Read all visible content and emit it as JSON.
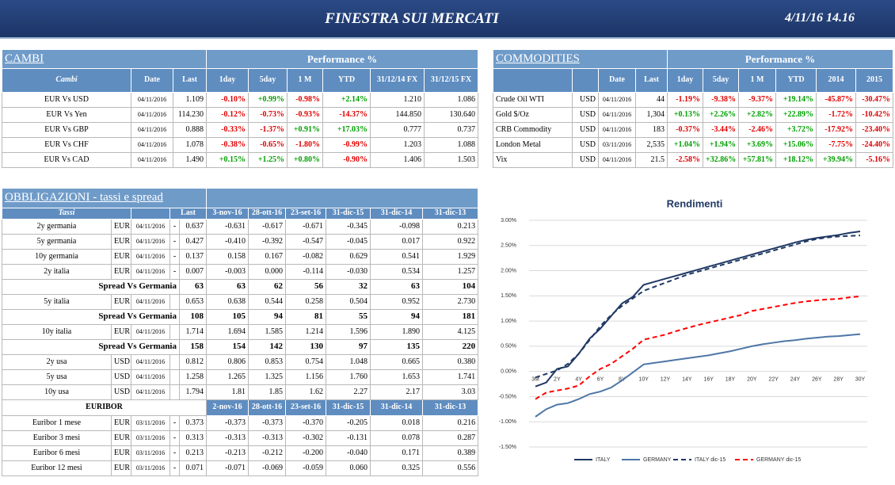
{
  "header": {
    "title": "FINESTRA SUI MERCATI",
    "date": "4/11/16 14.16"
  },
  "cambi": {
    "title": "CAMBI",
    "performance": "Performance  %",
    "columns": [
      "Cambi",
      "Date",
      "Last",
      "1day",
      "5day",
      "1 M",
      "YTD",
      "31/12/14 FX",
      "31/12/15  FX"
    ],
    "rows": [
      [
        "EUR Vs USD",
        "04/11/2016",
        "1.109",
        "-0.10%",
        "+0.99%",
        "-0.98%",
        "+2.14%",
        "1.210",
        "1.086"
      ],
      [
        "EUR Vs Yen",
        "04/11/2016",
        "114.230",
        "-0.12%",
        "-0.73%",
        "-0.93%",
        "-14.37%",
        "144.850",
        "130.640"
      ],
      [
        "EUR Vs GBP",
        "04/11/2016",
        "0.888",
        "-0.33%",
        "-1.37%",
        "+0.91%",
        "+17.03%",
        "0.777",
        "0.737"
      ],
      [
        "EUR Vs CHF",
        "04/11/2016",
        "1.078",
        "-0.38%",
        "-0.65%",
        "-1.80%",
        "-0.99%",
        "1.203",
        "1.088"
      ],
      [
        "EUR Vs CAD",
        "04/11/2016",
        "1.490",
        "+0.15%",
        "+1.25%",
        "+0.80%",
        "-0.90%",
        "1.406",
        "1.503"
      ]
    ]
  },
  "commodities": {
    "title": "COMMODITIES",
    "performance": "Performance  %",
    "columns": [
      "Date",
      "Last",
      "1day",
      "5day",
      "1 M",
      "YTD",
      "2014",
      "2015"
    ],
    "rows": [
      [
        "Crude Oil WTI",
        "USD",
        "04/11/2016",
        "44",
        "-1.19%",
        "-9.38%",
        "-9.37%",
        "+19.14%",
        "-45.87%",
        "-30.47%"
      ],
      [
        "Gold $/Oz",
        "USD",
        "04/11/2016",
        "1,304",
        "+0.13%",
        "+2.26%",
        "+2.82%",
        "+22.89%",
        "-1.72%",
        "-10.42%"
      ],
      [
        "CRB Commodity",
        "USD",
        "04/11/2016",
        "183",
        "-0.37%",
        "-3.44%",
        "-2.46%",
        "+3.72%",
        "-17.92%",
        "-23.40%"
      ],
      [
        "London Metal",
        "USD",
        "03/11/2016",
        "2,535",
        "+1.04%",
        "+1.94%",
        "+3.69%",
        "+15.06%",
        "-7.75%",
        "-24.40%"
      ],
      [
        "Vix",
        "USD",
        "04/11/2016",
        "21.5",
        "-2.58%",
        "+32.86%",
        "+57.81%",
        "+18.12%",
        "+39.94%",
        "-5.16%"
      ]
    ]
  },
  "obbligazioni": {
    "title": "OBBLIGAZIONI - tassi e spread",
    "columns": [
      "Tassi",
      "Last"
    ],
    "dates": [
      "3-nov-16",
      "28-ott-16",
      "23-set-16",
      "31-dic-15",
      "31-dic-14",
      "31-dic-13"
    ],
    "rows": [
      {
        "name": "2y germania",
        "currency": "EUR",
        "date": "04/11/2016",
        "sign": "-",
        "last": "0.637",
        "history": [
          "-0.631",
          "-0.617",
          "-0.671",
          "-0.345",
          "-0.098",
          "0.213"
        ]
      },
      {
        "name": "5y germania",
        "currency": "EUR",
        "date": "04/11/2016",
        "sign": "-",
        "last": "0.427",
        "history": [
          "-0.410",
          "-0.392",
          "-0.547",
          "-0.045",
          "0.017",
          "0.922"
        ]
      },
      {
        "name": "10y germania",
        "currency": "EUR",
        "date": "04/11/2016",
        "sign": "-",
        "last": "0.137",
        "history": [
          "0.158",
          "0.167",
          "-0.082",
          "0.629",
          "0.541",
          "1.929"
        ]
      },
      {
        "name": "2y italia",
        "currency": "EUR",
        "date": "04/11/2016",
        "sign": "-",
        "last": "0.007",
        "history": [
          "-0.003",
          "0.000",
          "-0.114",
          "-0.030",
          "0.534",
          "1.257"
        ]
      },
      {
        "label": "Spread Vs Germania",
        "last": "63",
        "history": [
          "63",
          "62",
          "56",
          "32",
          "63",
          "104"
        ]
      },
      {
        "name": "5y italia",
        "currency": "EUR",
        "date": "04/11/2016",
        "last": "0.653",
        "history": [
          "0.638",
          "0.544",
          "0.258",
          "0.504",
          "0.952",
          "2.730"
        ]
      },
      {
        "label": "Spread Vs Germania",
        "last": "108",
        "history": [
          "105",
          "94",
          "81",
          "55",
          "94",
          "181"
        ]
      },
      {
        "name": "10y italia",
        "currency": "EUR",
        "date": "04/11/2016",
        "last": "1.714",
        "history": [
          "1.694",
          "1.585",
          "1.214",
          "1.596",
          "1.890",
          "4.125"
        ]
      },
      {
        "label": "Spread Vs Germania",
        "last": "158",
        "history": [
          "154",
          "142",
          "130",
          "97",
          "135",
          "220"
        ]
      },
      {
        "name": "2y usa",
        "currency": "USD",
        "date": "04/11/2016",
        "last": "0.812",
        "history": [
          "0.806",
          "0.853",
          "0.754",
          "1.048",
          "0.665",
          "0.380"
        ]
      },
      {
        "name": "5y usa",
        "currency": "USD",
        "date": "04/11/2016",
        "last": "1.258",
        "history": [
          "1.265",
          "1.325",
          "1.156",
          "1.760",
          "1.653",
          "1.741"
        ]
      },
      {
        "name": "10y usa",
        "currency": "USD",
        "date": "04/11/2016",
        "last": "1.794",
        "history": [
          "1.81",
          "1.85",
          "1.62",
          "2.27",
          "2.17",
          "3.03"
        ]
      }
    ]
  },
  "euribor": {
    "title": "EURIBOR",
    "dates": [
      "2-nov-16",
      "28-ott-16",
      "23-set-16",
      "31-dic-15",
      "31-dic-14",
      "31-dic-13"
    ],
    "rows": [
      {
        "name": "Euribor 1 mese",
        "currency": "EUR",
        "date": "03/11/2016",
        "sign": "-",
        "last": "0.373",
        "history": [
          "-0.373",
          "-0.373",
          "-0.370",
          "-0.205",
          "0.018",
          "0.216"
        ]
      },
      {
        "name": "Euribor 3 mesi",
        "currency": "EUR",
        "date": "03/11/2016",
        "sign": "-",
        "last": "0.313",
        "history": [
          "-0.313",
          "-0.313",
          "-0.302",
          "-0.131",
          "0.078",
          "0.287"
        ]
      },
      {
        "name": "Euribor 6 mesi",
        "currency": "EUR",
        "date": "03/11/2016",
        "sign": "-",
        "last": "0.213",
        "history": [
          "-0.213",
          "-0.212",
          "-0.200",
          "-0.040",
          "0.171",
          "0.389"
        ]
      },
      {
        "name": "Euribor 12 mesi",
        "currency": "EUR",
        "date": "03/11/2016",
        "sign": "-",
        "last": "0.071",
        "history": [
          "-0.071",
          "-0.069",
          "-0.059",
          "0.060",
          "0.325",
          "0.556"
        ]
      }
    ]
  },
  "chart_data": {
    "type": "line",
    "title": "Rendimenti",
    "categories": [
      "3M",
      null,
      "2Y",
      null,
      "4Y",
      null,
      "6Y",
      null,
      "8Y",
      null,
      "10Y",
      null,
      "12Y",
      null,
      "14Y",
      null,
      "16Y",
      null,
      "18Y",
      null,
      "20Y",
      null,
      "22Y",
      null,
      "24Y",
      null,
      "26Y",
      null,
      "28Y",
      null,
      "30Y"
    ],
    "ylim": [
      -1.5,
      3
    ],
    "yticks": [
      {
        "value": -1.5,
        "label": "-1.50%"
      },
      {
        "value": -1,
        "label": "-1.00%"
      },
      {
        "value": -0.5,
        "label": "-0.50%"
      },
      {
        "value": 0,
        "label": "0.00%"
      },
      {
        "value": 0.5,
        "label": "0.50%"
      },
      {
        "value": 1,
        "label": "1.00%"
      },
      {
        "value": 1.5,
        "label": "1.50%"
      },
      {
        "value": 2,
        "label": "2.00%"
      },
      {
        "value": 2.5,
        "label": "2.50%"
      },
      {
        "value": 3,
        "label": "3.00%"
      }
    ],
    "grid": true,
    "legend": "bottom",
    "series": [
      {
        "name": "ITALY",
        "color": "#1f3864",
        "style": "solid",
        "values": [
          -0.3,
          -0.22,
          0.05,
          0.1,
          0.35,
          0.65,
          0.85,
          1.1,
          1.35,
          1.48,
          1.72,
          1.78,
          1.84,
          1.9,
          1.96,
          2.02,
          2.08,
          2.14,
          2.2,
          2.26,
          2.32,
          2.38,
          2.44,
          2.5,
          2.56,
          2.61,
          2.65,
          2.68,
          2.71,
          2.75,
          2.78
        ]
      },
      {
        "name": "GERMANY",
        "color": "#4e76a6",
        "style": "solid",
        "values": [
          -0.9,
          -0.75,
          -0.66,
          -0.63,
          -0.55,
          -0.45,
          -0.4,
          -0.32,
          -0.18,
          -0.02,
          0.14,
          0.17,
          0.2,
          0.23,
          0.26,
          0.29,
          0.32,
          0.36,
          0.4,
          0.45,
          0.5,
          0.54,
          0.57,
          0.6,
          0.62,
          0.65,
          0.67,
          0.69,
          0.7,
          0.72,
          0.74
        ]
      },
      {
        "name": "ITALY dic-15",
        "color": "#1f3864",
        "style": "dashed",
        "values": [
          -0.12,
          -0.05,
          0.02,
          0.15,
          0.35,
          0.62,
          0.9,
          1.12,
          1.3,
          1.45,
          1.6,
          1.68,
          1.76,
          1.84,
          1.92,
          1.98,
          2.04,
          2.1,
          2.16,
          2.22,
          2.28,
          2.34,
          2.4,
          2.46,
          2.52,
          2.58,
          2.63,
          2.66,
          2.68,
          2.69,
          2.7
        ]
      },
      {
        "name": "GERMANY dic-15",
        "color": "#ff0000",
        "style": "dashed",
        "values": [
          -0.55,
          -0.42,
          -0.38,
          -0.34,
          -0.28,
          -0.1,
          0.05,
          0.15,
          0.3,
          0.45,
          0.63,
          0.68,
          0.73,
          0.8,
          0.86,
          0.92,
          0.97,
          1.02,
          1.07,
          1.12,
          1.2,
          1.24,
          1.28,
          1.32,
          1.36,
          1.39,
          1.41,
          1.43,
          1.44,
          1.47,
          1.49
        ]
      }
    ]
  }
}
